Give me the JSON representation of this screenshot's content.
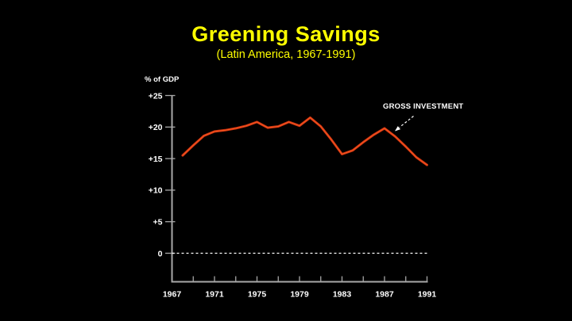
{
  "colors": {
    "background": "#000000",
    "title": "#ffff00",
    "text": "#ffffff",
    "axis": "#a8a8a8",
    "line": "#c93210",
    "line_highlight": "#f2521e"
  },
  "chart_data": {
    "type": "line",
    "title": "Greening Savings",
    "subtitle": "(Latin America, 1967-1991)",
    "ylabel": "% of GDP",
    "xlabel": "",
    "xlim": [
      1967,
      1991
    ],
    "ylim": [
      0,
      25
    ],
    "grid": false,
    "legend_position": "annotation-arrow",
    "zero_line_style": "dashed",
    "x_ticks_labeled": [
      1967,
      1971,
      1975,
      1979,
      1983,
      1987,
      1991
    ],
    "x_tick_minor_step": 2,
    "y_ticks": [
      {
        "label": "+25",
        "value": 25
      },
      {
        "label": "+20",
        "value": 20
      },
      {
        "label": "+15",
        "value": 15
      },
      {
        "label": "+10",
        "value": 10
      },
      {
        "label": "+5",
        "value": 5
      },
      {
        "label": "0",
        "value": 0
      }
    ],
    "x": [
      1968,
      1969,
      1970,
      1971,
      1972,
      1973,
      1974,
      1975,
      1976,
      1977,
      1978,
      1979,
      1980,
      1981,
      1982,
      1983,
      1984,
      1985,
      1986,
      1987,
      1988,
      1989,
      1990,
      1991
    ],
    "series": [
      {
        "name": "GROSS INVESTMENT",
        "values": [
          15.5,
          17.1,
          18.6,
          19.3,
          19.5,
          19.8,
          20.2,
          20.8,
          19.9,
          20.1,
          20.8,
          20.2,
          21.5,
          20.1,
          18.0,
          15.7,
          16.3,
          17.6,
          18.8,
          19.8,
          18.5,
          16.9,
          15.2,
          14.0
        ]
      }
    ]
  }
}
